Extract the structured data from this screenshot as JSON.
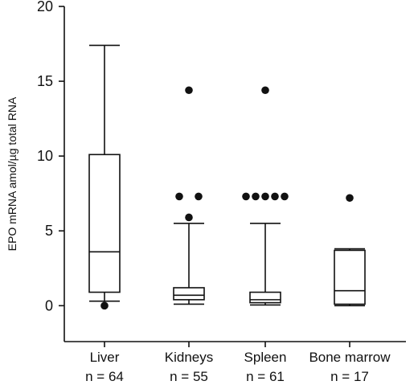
{
  "chart_data": {
    "type": "box",
    "title": "",
    "xlabel": "",
    "ylabel": "EPO mRNA amol/µg total RNA",
    "ylim": [
      -2.4,
      20
    ],
    "yticks": [
      0,
      5,
      10,
      15,
      20
    ],
    "grid": false,
    "legend": "none",
    "categories": [
      "Liver",
      "Kidneys",
      "Spleen",
      "Bone marrow"
    ],
    "n_labels": [
      "n = 64",
      "n = 55",
      "n = 61",
      "n = 17"
    ],
    "boxes": [
      {
        "whisker_low": 0.3,
        "q1": 0.9,
        "median": 3.6,
        "q3": 10.1,
        "whisker_high": 17.4,
        "outliers": [
          {
            "offset": 0,
            "value": 0.0
          }
        ]
      },
      {
        "whisker_low": 0.1,
        "q1": 0.4,
        "median": 0.7,
        "q3": 1.2,
        "whisker_high": 5.5,
        "outliers": [
          {
            "offset": 0,
            "value": 14.4
          },
          {
            "offset": -0.5,
            "value": 7.3
          },
          {
            "offset": 0.5,
            "value": 7.3
          },
          {
            "offset": 0,
            "value": 5.9
          }
        ]
      },
      {
        "whisker_low": 0.05,
        "q1": 0.2,
        "median": 0.4,
        "q3": 0.9,
        "whisker_high": 5.5,
        "outliers": [
          {
            "offset": 0,
            "value": 14.4
          },
          {
            "offset": -2,
            "value": 7.3
          },
          {
            "offset": -1,
            "value": 7.3
          },
          {
            "offset": 0,
            "value": 7.3
          },
          {
            "offset": 1,
            "value": 7.3
          },
          {
            "offset": 2,
            "value": 7.3
          }
        ]
      },
      {
        "whisker_low": 0.0,
        "q1": 0.1,
        "median": 1.0,
        "q3": 3.7,
        "whisker_high": 3.8,
        "outliers": [
          {
            "offset": 0,
            "value": 7.2
          }
        ]
      }
    ],
    "colors": {
      "ink": "#111111",
      "background": "#ffffff"
    }
  }
}
